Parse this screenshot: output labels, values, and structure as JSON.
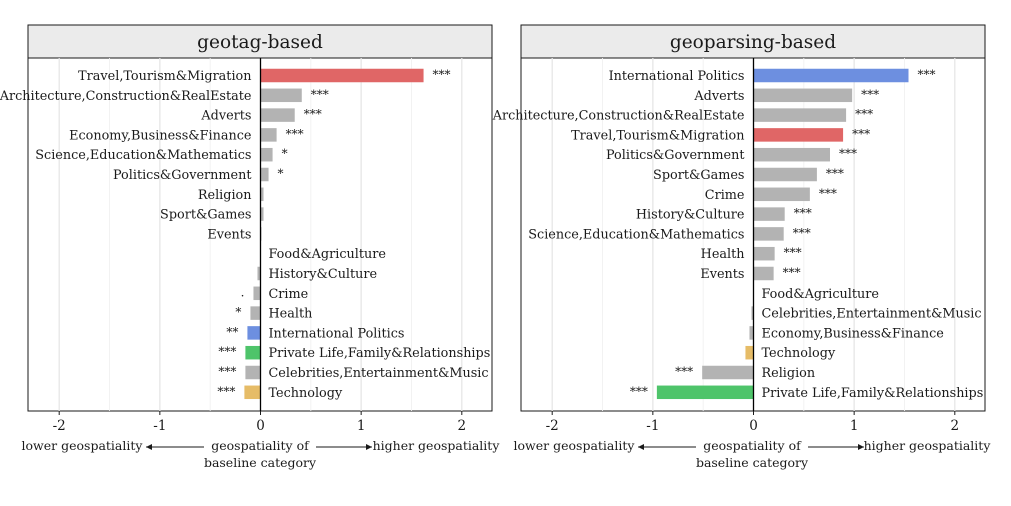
{
  "footer": {
    "lower": "lower geospatiality",
    "center_line1": "geospatiality of",
    "center_line2": "baseline category",
    "higher": "higher geospatiality"
  },
  "colors": {
    "gray": "#b3b3b3",
    "red": "#e06666",
    "blue": "#6d8fe0",
    "green": "#4ec46a",
    "gold": "#e6bc67"
  },
  "chart_data": [
    {
      "type": "bar",
      "orientation": "horizontal",
      "title": "geotag-based",
      "xlim": [
        -2.3,
        2.3
      ],
      "xticks": [
        -2,
        -1,
        0,
        1,
        2
      ],
      "xtick_labels": [
        "-2",
        "-1",
        "0",
        "1",
        "2"
      ],
      "grid": true,
      "categories": [
        "Travel,Tourism&Migration",
        "Architecture,Construction&RealEstate",
        "Adverts",
        "Economy,Business&Finance",
        "Science,Education&Mathematics",
        "Politics&Government",
        "Religion",
        "Sport&Games",
        "Events",
        "Food&Agriculture",
        "History&Culture",
        "Crime",
        "Health",
        "International Politics",
        "Private Life,Family&Relationships",
        "Celebrities,Entertainment&Music",
        "Technology"
      ],
      "values": [
        1.62,
        0.41,
        0.34,
        0.16,
        0.12,
        0.08,
        0.03,
        0.03,
        0.01,
        0.0,
        -0.03,
        -0.07,
        -0.1,
        -0.13,
        -0.15,
        -0.15,
        -0.16
      ],
      "significance": [
        "***",
        "***",
        "***",
        "***",
        "*",
        "*",
        "",
        "",
        "",
        "",
        "",
        ".",
        "*",
        "**",
        "***",
        "***",
        "***"
      ],
      "colors": [
        "red",
        "gray",
        "gray",
        "gray",
        "gray",
        "gray",
        "gray",
        "gray",
        "gray",
        "gray",
        "gray",
        "gray",
        "gray",
        "blue",
        "green",
        "gray",
        "gold"
      ]
    },
    {
      "type": "bar",
      "orientation": "horizontal",
      "title": "geoparsing-based",
      "xlim": [
        -2.3,
        2.3
      ],
      "xticks": [
        -2,
        -1,
        0,
        1,
        2
      ],
      "xtick_labels": [
        "-2",
        "-1",
        "0",
        "1",
        "2"
      ],
      "grid": true,
      "categories": [
        "International Politics",
        "Adverts",
        "Architecture,Construction&RealEstate",
        "Travel,Tourism&Migration",
        "Politics&Government",
        "Sport&Games",
        "Crime",
        "History&Culture",
        "Science,Education&Mathematics",
        "Health",
        "Events",
        "Food&Agriculture",
        "Celebrities,Entertainment&Music",
        "Economy,Business&Finance",
        "Technology",
        "Religion",
        "Private Life,Family&Relationships"
      ],
      "values": [
        1.54,
        0.98,
        0.92,
        0.89,
        0.76,
        0.63,
        0.56,
        0.31,
        0.3,
        0.21,
        0.2,
        0.0,
        -0.02,
        -0.04,
        -0.08,
        -0.51,
        -0.96
      ],
      "significance": [
        "***",
        "***",
        "***",
        "***",
        "***",
        "***",
        "***",
        "***",
        "***",
        "***",
        "***",
        "",
        "",
        "",
        "",
        "***",
        "***"
      ],
      "colors": [
        "blue",
        "gray",
        "gray",
        "red",
        "gray",
        "gray",
        "gray",
        "gray",
        "gray",
        "gray",
        "gray",
        "gray",
        "gray",
        "gray",
        "gold",
        "gray",
        "green"
      ]
    }
  ]
}
